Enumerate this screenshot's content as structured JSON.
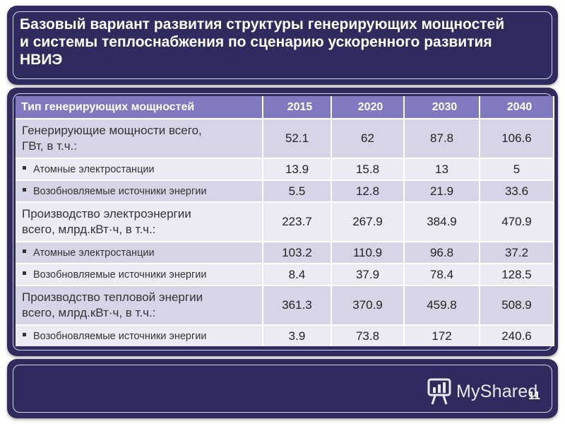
{
  "title": {
    "line1": "Базовый вариант развития структуры генерирующих мощностей",
    "line2": "и системы теплоснабжения по сценарию ускоренного развития",
    "line3": "НВИЭ"
  },
  "table": {
    "headers": [
      "Тип генерирующих мощностей",
      "2015",
      "2020",
      "2030",
      "2040"
    ],
    "rows": [
      {
        "label1": "Генерирующие мощности всего,",
        "label2": "ГВт, в т.ч.:",
        "values": [
          "52.1",
          "62",
          "87.8",
          "106.6"
        ]
      },
      {
        "label": "Атомные электростанции",
        "values": [
          "13.9",
          "15.8",
          "13",
          "5"
        ]
      },
      {
        "label": "Возобновляемые источники энергии",
        "values": [
          "5.5",
          "12.8",
          "21.9",
          "33.6"
        ]
      },
      {
        "label1": "Производство электроэнергии",
        "label2": "всего, млрд.кВт·ч, в т.ч.:",
        "values": [
          "223.7",
          "267.9",
          "384.9",
          "470.9"
        ]
      },
      {
        "label": "Атомные электростанции",
        "values": [
          "103.2",
          "110.9",
          "96.8",
          "37.2"
        ]
      },
      {
        "label": "Возобновляемые источники энергии",
        "values": [
          "8.4",
          "37.9",
          "78.4",
          "128.5"
        ]
      },
      {
        "label1": "Производство тепловой энергии",
        "label2": "всего, млрд.кВт·ч, в т.ч.:",
        "values": [
          "361.3",
          "370.9",
          "459.8",
          "508.9"
        ]
      },
      {
        "label": "Возобновляемые источники энергии",
        "values": [
          "3.9",
          "73.8",
          "172",
          "240.6"
        ]
      }
    ]
  },
  "footer": {
    "logo_text": "MyShared",
    "page_number": "11"
  },
  "colors": {
    "panel": "#2f2b5e",
    "header": "#7f79c0",
    "row_odd": "#d6d5e8",
    "row_even": "#eceaf4"
  }
}
